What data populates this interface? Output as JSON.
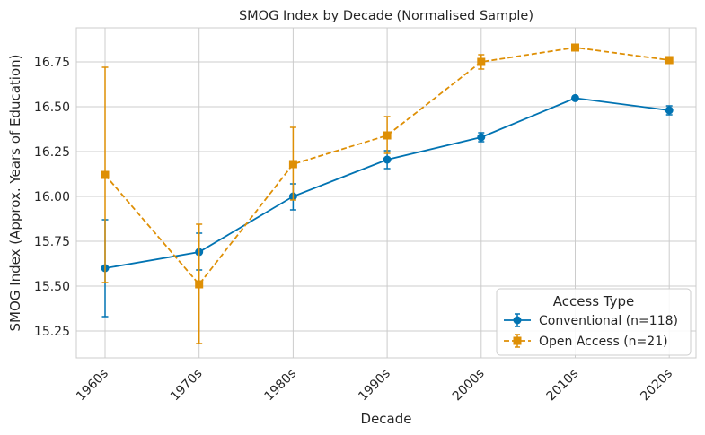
{
  "chart_data": {
    "type": "line",
    "title": "SMOG Index by Decade (Normalised Sample)",
    "xlabel": "Decade",
    "ylabel": "SMOG Index (Approx. Years of Education)",
    "categories": [
      "1960s",
      "1970s",
      "1980s",
      "1990s",
      "2000s",
      "2010s",
      "2020s"
    ],
    "ylim": [
      15.1,
      16.94
    ],
    "yticks": [
      15.25,
      15.5,
      15.75,
      16.0,
      16.25,
      16.5,
      16.75
    ],
    "ytick_labels": [
      "15.25",
      "15.50",
      "15.75",
      "16.00",
      "16.25",
      "16.50",
      "16.75"
    ],
    "grid": true,
    "legend": {
      "title": "Access Type",
      "position": "lower-right"
    },
    "series": [
      {
        "name": "Conventional (n=118)",
        "color": "#0173b2",
        "linestyle": "solid",
        "marker": "circle",
        "values": [
          15.6,
          15.69,
          16.0,
          16.205,
          16.33,
          16.548,
          16.48
        ],
        "err_low": [
          15.33,
          15.59,
          15.925,
          16.155,
          16.305,
          16.538,
          16.455
        ],
        "err_high": [
          15.87,
          15.795,
          16.07,
          16.255,
          16.355,
          16.558,
          16.505
        ]
      },
      {
        "name": "Open Access (n=21)",
        "color": "#de8f05",
        "linestyle": "dashed",
        "marker": "square",
        "values": [
          16.12,
          15.51,
          16.18,
          16.34,
          16.75,
          16.83,
          16.76
        ],
        "err_low": [
          15.52,
          15.18,
          15.98,
          16.24,
          16.71,
          16.82,
          16.75
        ],
        "err_high": [
          16.72,
          15.845,
          16.385,
          16.445,
          16.79,
          16.84,
          16.77
        ]
      }
    ]
  }
}
